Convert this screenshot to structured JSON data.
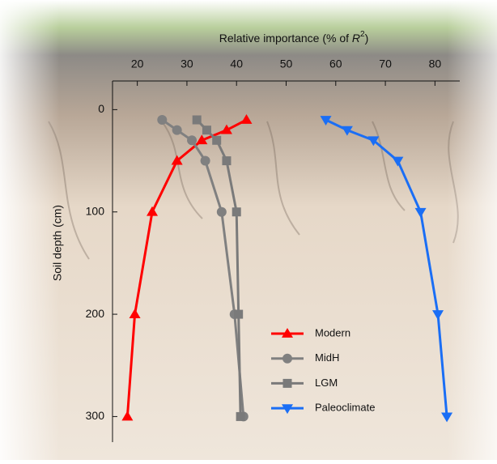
{
  "chart_data": {
    "type": "line",
    "x_label_parts": [
      "Relative importance (% of ",
      "R",
      "2",
      ")"
    ],
    "y_label": "Soil depth (cm)",
    "y": [
      10,
      20,
      30,
      50,
      100,
      200,
      300
    ],
    "series": [
      {
        "name": "Modern",
        "color": "#ff0000",
        "marker": "triangle-up",
        "values": [
          42,
          38,
          33,
          28,
          23,
          19.5,
          18
        ]
      },
      {
        "name": "MidH",
        "color": "#808080",
        "marker": "circle",
        "values": [
          25,
          28,
          31,
          33.7,
          37,
          39.6,
          41.4
        ]
      },
      {
        "name": "LGM",
        "color": "#7a7a7a",
        "marker": "square",
        "values": [
          32,
          34,
          36,
          38,
          40,
          40.4,
          40.8
        ]
      },
      {
        "name": "Paleoclimate",
        "color": "#1a6ef5",
        "marker": "triangle-down",
        "values": [
          58,
          62.3,
          67.6,
          72.5,
          77.1,
          80.6,
          82.4
        ]
      }
    ],
    "xlim": [
      15,
      85
    ],
    "xticks": [
      20,
      30,
      40,
      50,
      60,
      70,
      80
    ],
    "ylim": [
      -28,
      325
    ],
    "yticks": [
      0,
      100,
      200,
      300
    ],
    "y_inverted": true,
    "x_axis_position": "top",
    "legend": "lower right"
  }
}
